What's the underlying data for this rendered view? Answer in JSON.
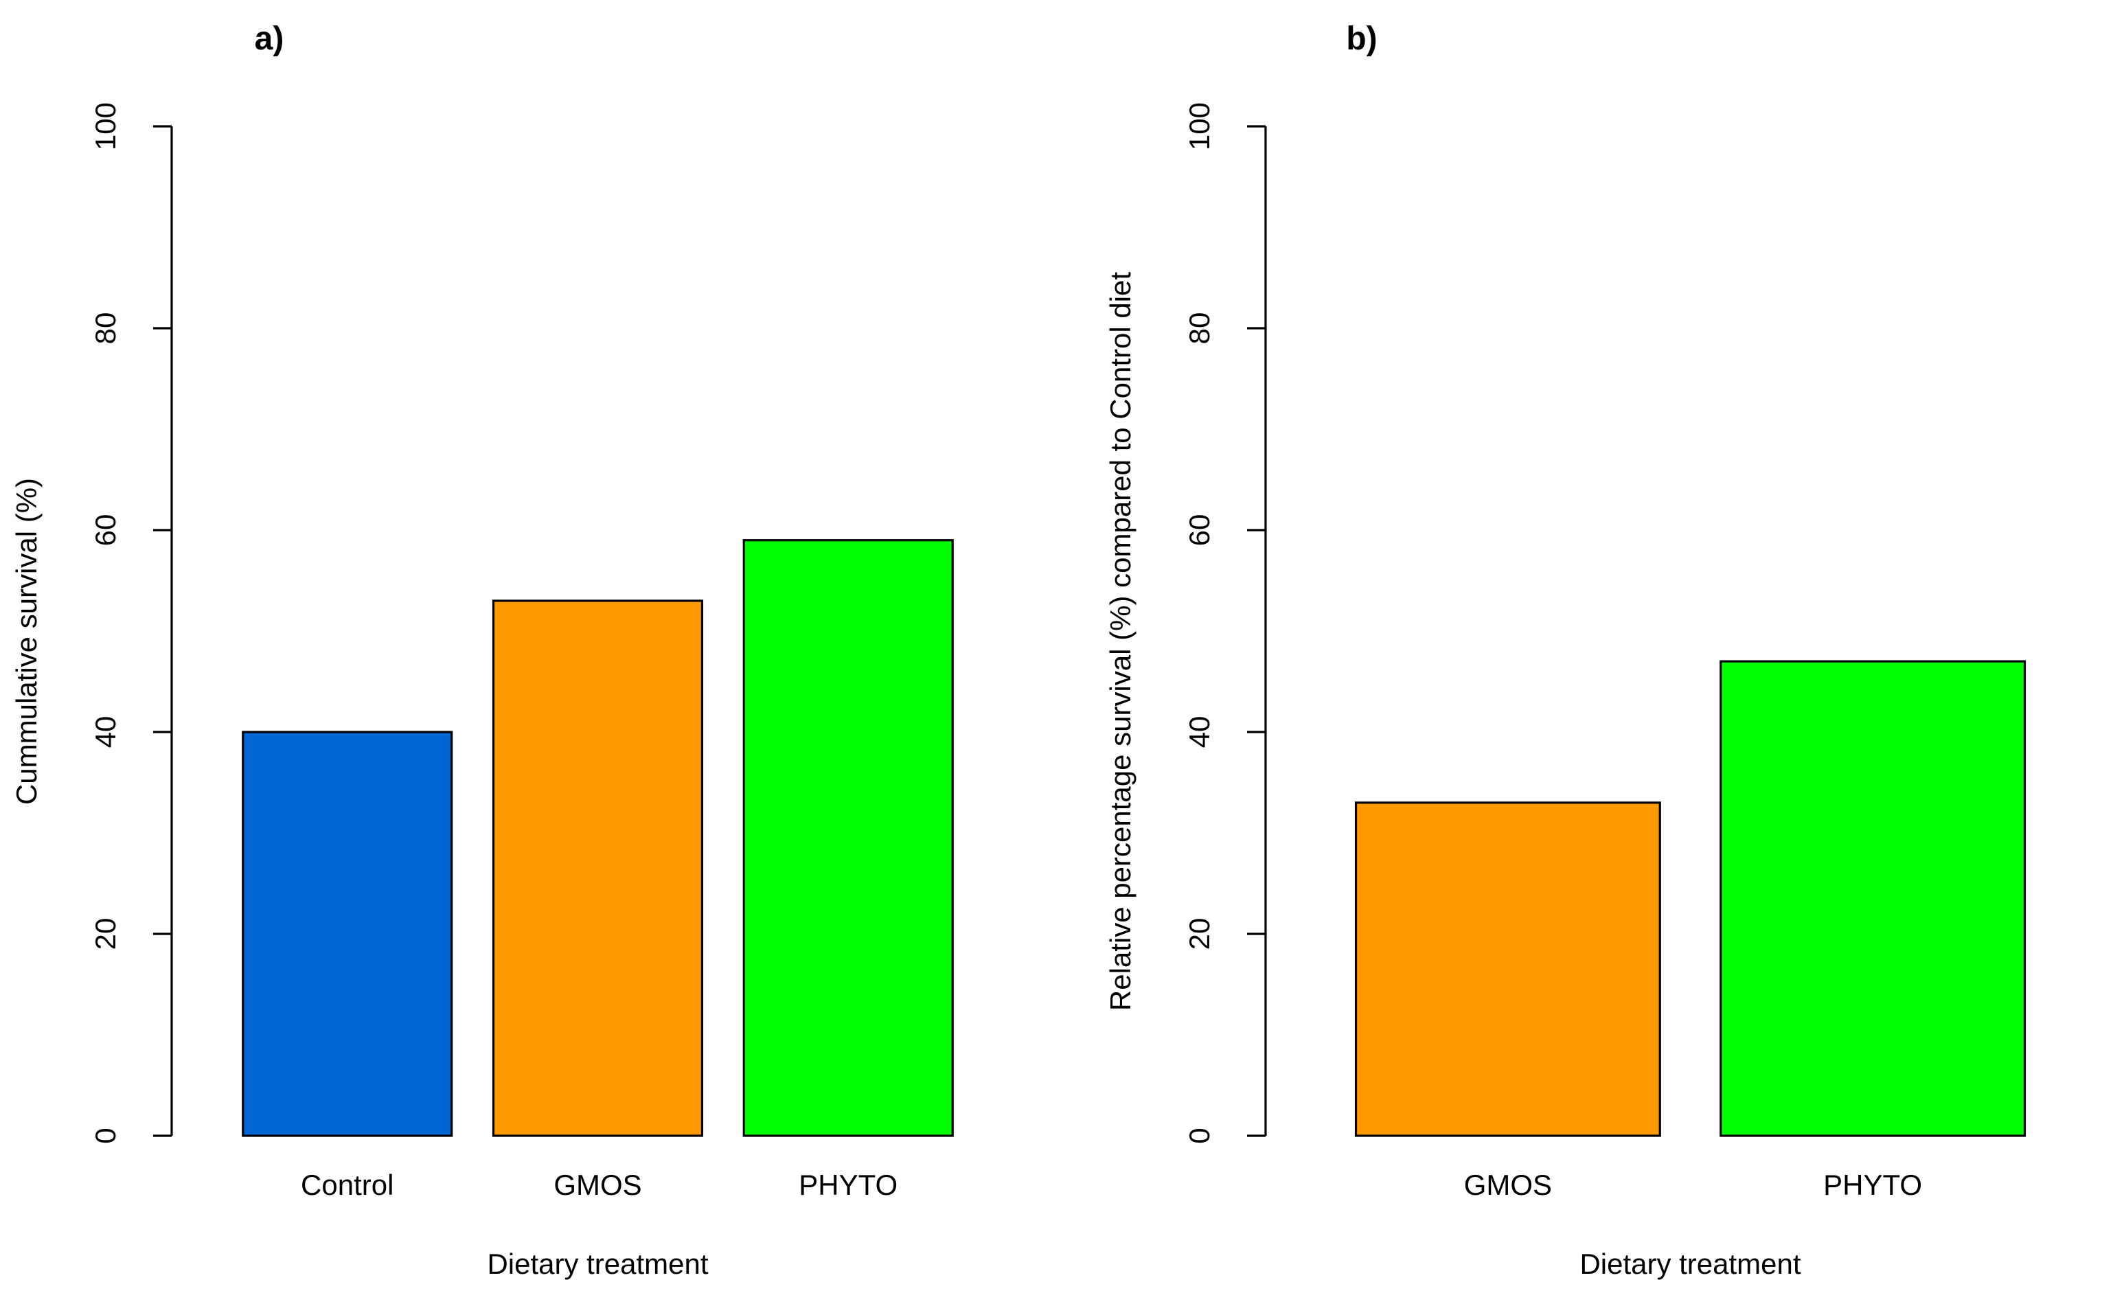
{
  "chart_data": [
    {
      "type": "bar",
      "panel_label": "a)",
      "categories": [
        "Control",
        "GMOS",
        "PHYTO"
      ],
      "values": [
        40,
        53,
        59
      ],
      "colors": [
        "#0066d4",
        "#ff9900",
        "#00ff00"
      ],
      "xlabel": "Dietary treatment",
      "ylabel": "Cummulative survival (%)",
      "ylim": [
        0,
        100
      ],
      "yticks": [
        0,
        20,
        40,
        60,
        80,
        100
      ],
      "grid": false
    },
    {
      "type": "bar",
      "panel_label": "b)",
      "categories": [
        "GMOS",
        "PHYTO"
      ],
      "values": [
        33,
        47
      ],
      "colors": [
        "#ff9900",
        "#00ff00"
      ],
      "xlabel": "Dietary treatment",
      "ylabel": "Relative percentage survival (%) compared to Control diet",
      "ylim": [
        0,
        100
      ],
      "yticks": [
        0,
        20,
        40,
        60,
        80,
        100
      ],
      "grid": false
    }
  ]
}
